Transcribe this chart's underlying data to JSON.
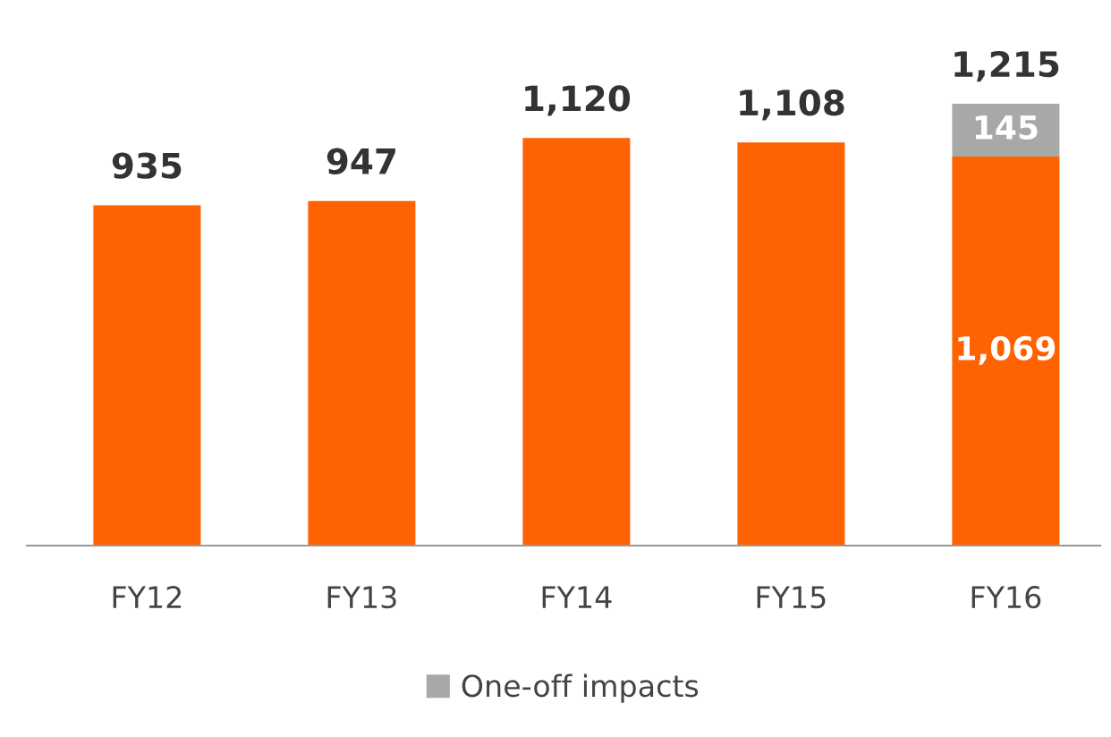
{
  "chart_data": {
    "type": "bar",
    "stacked": true,
    "categories": [
      "FY12",
      "FY13",
      "FY14",
      "FY15",
      "FY16"
    ],
    "series": [
      {
        "color": "#ff6200",
        "values": [
          935,
          947,
          1120,
          1108,
          1069
        ],
        "value_labels": [
          null,
          null,
          null,
          null,
          "1,069"
        ]
      },
      {
        "name": "One-off impacts",
        "color": "#a8a8a8",
        "values": [
          null,
          null,
          null,
          null,
          145
        ],
        "value_labels": [
          null,
          null,
          null,
          null,
          "145"
        ]
      }
    ],
    "totals": [
      "935",
      "947",
      "1,120",
      "1,108",
      "1,215"
    ],
    "tick_labels": "x",
    "grid": false,
    "legend": "bottom"
  }
}
